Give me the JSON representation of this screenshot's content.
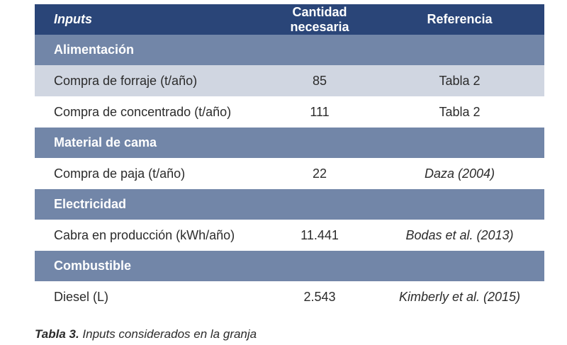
{
  "table": {
    "header": {
      "inputs": "Inputs",
      "quantity": "Cantidad necesaria",
      "reference": "Referencia"
    },
    "sections": [
      {
        "title": "Alimentación",
        "rows": [
          {
            "input": "Compra de forraje (t/año)",
            "quantity": "85",
            "reference": "Tabla 2",
            "italic_ref": false,
            "shaded": true
          },
          {
            "input": "Compra de concentrado (t/año)",
            "quantity": "111",
            "reference": "Tabla 2",
            "italic_ref": false,
            "shaded": false
          }
        ]
      },
      {
        "title": "Material de cama",
        "rows": [
          {
            "input": "Compra de paja (t/año)",
            "quantity": "22",
            "reference": "Daza (2004)",
            "italic_ref": true,
            "shaded": false
          }
        ]
      },
      {
        "title": "Electricidad",
        "rows": [
          {
            "input": "Cabra en producción (kWh/año)",
            "quantity": "11.441",
            "reference": "Bodas et al. (2013)",
            "italic_ref": true,
            "shaded": false
          }
        ]
      },
      {
        "title": "Combustible",
        "rows": [
          {
            "input": "Diesel (L)",
            "quantity": "2.543",
            "reference": "Kimberly et al. (2015)",
            "italic_ref": true,
            "shaded": false
          }
        ]
      }
    ]
  },
  "caption": {
    "label": "Tabla 3.",
    "text": " Inputs considerados en la granja"
  }
}
